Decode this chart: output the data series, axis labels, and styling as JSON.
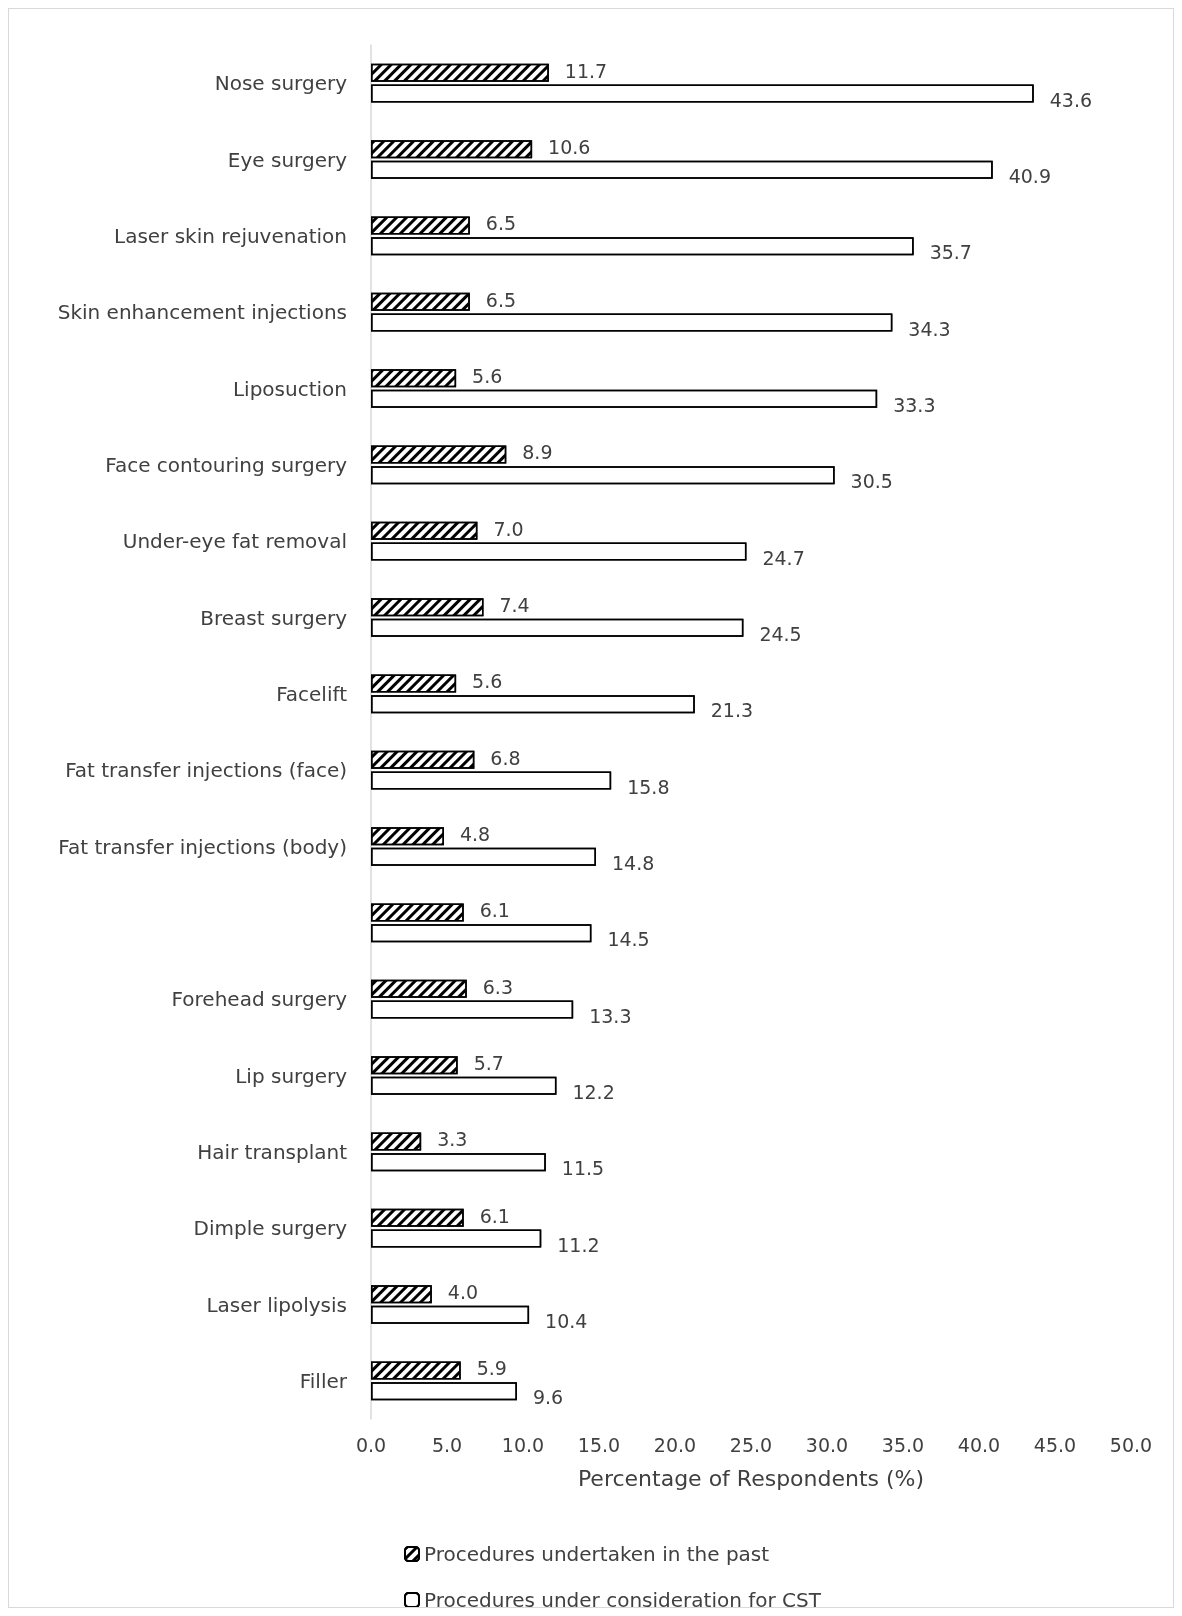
{
  "chart_data": {
    "type": "bar",
    "orientation": "horizontal",
    "xlabel": "Percentage of Respondents (%)",
    "categories": [
      "Nose surgery",
      "Eye surgery",
      "Laser skin rejuvenation",
      "Skin enhancement injections",
      "Liposuction",
      "Face contouring surgery",
      "Under-eye fat removal",
      "Breast surgery",
      "Facelift",
      "Fat transfer injections (face)",
      "Fat transfer injections (body)",
      null,
      "Forehead surgery",
      "Lip surgery",
      "Hair transplant",
      "Dimple surgery",
      "Laser lipolysis",
      "Filler"
    ],
    "series": [
      {
        "name": "Procedures undertaken in the past",
        "color": "#000000",
        "values": [
          11.7,
          10.6,
          6.5,
          6.5,
          5.6,
          8.9,
          7.0,
          7.4,
          5.6,
          6.8,
          4.8,
          6.1,
          6.3,
          5.7,
          3.3,
          6.1,
          4.0,
          5.9
        ],
        "value_labels": [
          "11.7",
          "10.6",
          "6.5",
          "6.5",
          "5.6",
          "8.9",
          "7.0",
          "7.4",
          "5.6",
          "6.8",
          "4.8",
          "6.1",
          "6.3",
          "5.7",
          "3.3",
          "6.1",
          "4.0",
          "5.9"
        ]
      },
      {
        "name": "Procedures under consideration for CST",
        "color": "#ffffff",
        "values": [
          43.6,
          40.9,
          35.7,
          34.3,
          33.3,
          30.5,
          24.7,
          24.5,
          21.3,
          15.8,
          14.8,
          14.5,
          13.3,
          12.2,
          11.5,
          11.2,
          10.4,
          9.6
        ],
        "value_labels": [
          "43.6",
          "40.9",
          "35.7",
          "34.3",
          "33.3",
          "30.5",
          "24.7",
          "24.5",
          "21.3",
          "15.8",
          "14.8",
          "14.5",
          "13.3",
          "12.2",
          "11.5",
          "11.2",
          "10.4",
          "9.6"
        ]
      }
    ],
    "xlim": [
      0,
      50
    ],
    "xticks": [
      {
        "value": 0,
        "label": "0.0"
      },
      {
        "value": 5,
        "label": "5.0"
      },
      {
        "value": 10,
        "label": "10.0"
      },
      {
        "value": 15,
        "label": "15.0"
      },
      {
        "value": 20,
        "label": "20.0"
      },
      {
        "value": 25,
        "label": "25.0"
      },
      {
        "value": 30,
        "label": "30.0"
      },
      {
        "value": 35,
        "label": "35.0"
      },
      {
        "value": 40,
        "label": "40.0"
      },
      {
        "value": 45,
        "label": "45.0"
      },
      {
        "value": 50,
        "label": "50.0"
      }
    ],
    "grid": false,
    "legend": "bottom"
  }
}
